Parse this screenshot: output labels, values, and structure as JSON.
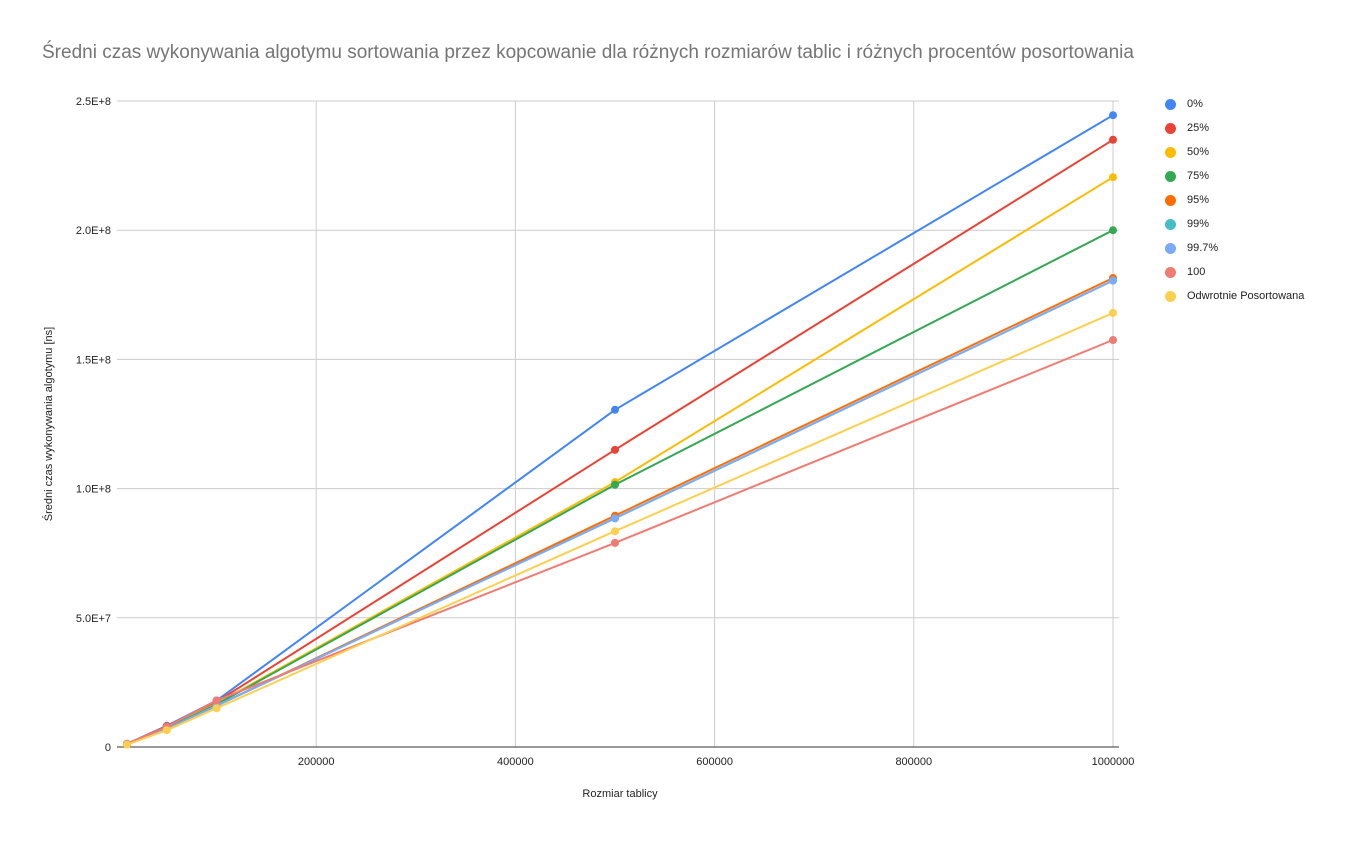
{
  "chart_data": {
    "type": "line",
    "title": "Średni czas wykonywania algotymu sortowania przez kopcowanie dla różnych rozmiarów tablic i różnych procentów posortowania",
    "xlabel": "Rozmiar tablicy",
    "ylabel": "Średni czas wykonywania algotymu [ns]",
    "xlim": [
      0,
      1000000
    ],
    "ylim": [
      0,
      250000000
    ],
    "x_ticks": [
      "200000",
      "400000",
      "600000",
      "800000",
      "1000000"
    ],
    "x_tick_values": [
      200000,
      400000,
      600000,
      800000,
      1000000
    ],
    "y_ticks": [
      "0",
      "5.0E+7",
      "1.0E+8",
      "1.5E+8",
      "2.0E+8",
      "2.5E+8"
    ],
    "y_tick_values": [
      0,
      50000000,
      100000000,
      150000000,
      200000000,
      250000000
    ],
    "grid": true,
    "legend_position": "right",
    "x": [
      10000,
      50000,
      100000,
      500000,
      1000000
    ],
    "series": [
      {
        "name": "0%",
        "color": "#4285F4",
        "values": [
          1200000,
          8200000,
          18000000,
          130500000,
          244500000
        ]
      },
      {
        "name": "25%",
        "color": "#EA4335",
        "values": [
          1150000,
          8000000,
          17500000,
          115000000,
          235000000
        ]
      },
      {
        "name": "50%",
        "color": "#FBBC04",
        "values": [
          1100000,
          7500000,
          16800000,
          102500000,
          220500000
        ]
      },
      {
        "name": "75%",
        "color": "#34A853",
        "values": [
          1050000,
          7300000,
          16500000,
          101500000,
          200000000
        ]
      },
      {
        "name": "95%",
        "color": "#FF6D01",
        "values": [
          1000000,
          7000000,
          16000000,
          89500000,
          181500000
        ]
      },
      {
        "name": "99%",
        "color": "#46BDC6",
        "values": [
          1000000,
          7000000,
          16000000,
          88500000,
          180500000
        ]
      },
      {
        "name": "99.7%",
        "color": "#7BAAF7",
        "values": [
          1000000,
          7000000,
          16000000,
          88500000,
          180500000
        ]
      },
      {
        "name": "100",
        "color": "#F07B72",
        "values": [
          1250000,
          7800000,
          18000000,
          79000000,
          157500000
        ]
      },
      {
        "name": "Odwrotnie Posortowana",
        "color": "#FCD04F",
        "values": [
          900000,
          6500000,
          15000000,
          83500000,
          168000000
        ]
      }
    ]
  }
}
